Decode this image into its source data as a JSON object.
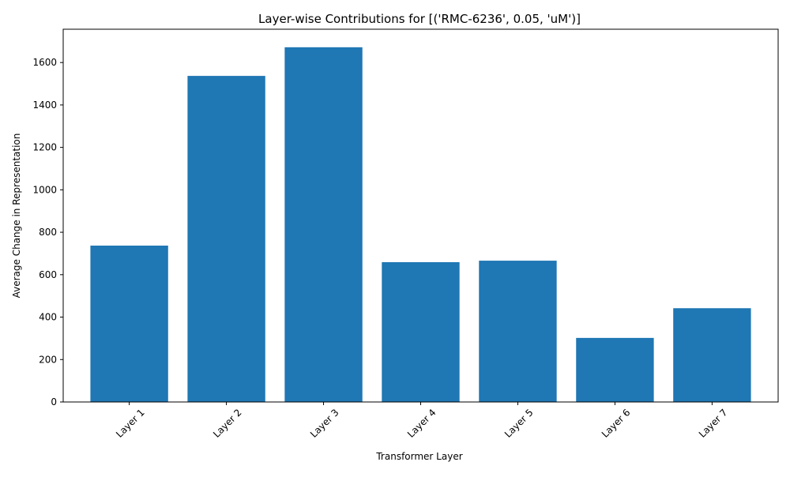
{
  "chart_data": {
    "type": "bar",
    "title": "Layer-wise Contributions for [('RMC-6236', 0.05, 'uM')]",
    "xlabel": "Transformer Layer",
    "ylabel": "Average Change in Representation",
    "categories": [
      "Layer 1",
      "Layer 2",
      "Layer 3",
      "Layer 4",
      "Layer 5",
      "Layer 6",
      "Layer 7"
    ],
    "values": [
      737,
      1537,
      1672,
      659,
      666,
      302,
      442
    ],
    "ylim": [
      0,
      1757
    ],
    "yticks": [
      0,
      200,
      400,
      600,
      800,
      1000,
      1200,
      1400,
      1600
    ],
    "x_tick_rotation": 45,
    "grid": false,
    "legend": "none",
    "colors": {
      "bar": "#1f77b4",
      "axis": "#000000",
      "background": "#ffffff"
    }
  }
}
